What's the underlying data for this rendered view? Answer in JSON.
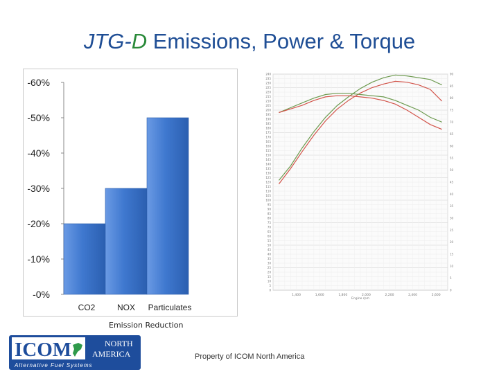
{
  "title": {
    "prefix": "JTG-",
    "accent": "D",
    "rest": " Emissions, Power & Torque"
  },
  "chart_data": [
    {
      "type": "bar",
      "categories": [
        "CO2",
        "NOX",
        "Particulates"
      ],
      "values": [
        -20,
        -30,
        -50
      ],
      "ylim": [
        0,
        -60
      ],
      "yticks": [
        "-60%",
        "-50%",
        "-40%",
        "-30%",
        "-20%",
        "-10%",
        "-0%"
      ],
      "xlabel": "Emission Reduction",
      "bar_color": "#3f78cf",
      "grid": false
    },
    {
      "type": "line",
      "xlabel": "Engine rpm",
      "x_ticks": [
        "1,400",
        "1,600",
        "1,800",
        "2,000",
        "2,200",
        "2,400",
        "2,600"
      ],
      "x": [
        1250,
        1350,
        1450,
        1550,
        1650,
        1750,
        1850,
        1950,
        2050,
        2150,
        2250,
        2350,
        2450,
        2550,
        2650
      ],
      "left_axis": {
        "range": [
          0,
          240
        ]
      },
      "right_axis": {
        "range": [
          0,
          90
        ]
      },
      "series": [
        {
          "color": "#6d9a4f",
          "axis": "left",
          "values": [
            122,
            138,
            158,
            176,
            192,
            205,
            215,
            224,
            231,
            236,
            239,
            238,
            236,
            234,
            228
          ]
        },
        {
          "color": "#d2544a",
          "axis": "left",
          "values": [
            118,
            135,
            154,
            172,
            188,
            201,
            211,
            219,
            225,
            229,
            232,
            231,
            228,
            223,
            210
          ]
        },
        {
          "color": "#6d9a4f",
          "axis": "right",
          "values": [
            74,
            76,
            78,
            80,
            81.5,
            82,
            82,
            81.5,
            81,
            80.5,
            79,
            77,
            75,
            72,
            70
          ]
        },
        {
          "color": "#d2544a",
          "axis": "right",
          "values": [
            74,
            75.5,
            77,
            79,
            80.5,
            81,
            81,
            80.5,
            80,
            79,
            77.5,
            75,
            72,
            69,
            67
          ]
        }
      ],
      "grid": true
    }
  ],
  "logo": {
    "brand": "ICOM",
    "region_top": "NORTH",
    "region_bottom": "AMERICA",
    "tagline": "Alternative Fuel Systems",
    "colors": {
      "panel": "#1e4d9c",
      "box": "#ffffff",
      "green": "#2f9a4b"
    }
  },
  "footer": "Property of ICOM North America"
}
